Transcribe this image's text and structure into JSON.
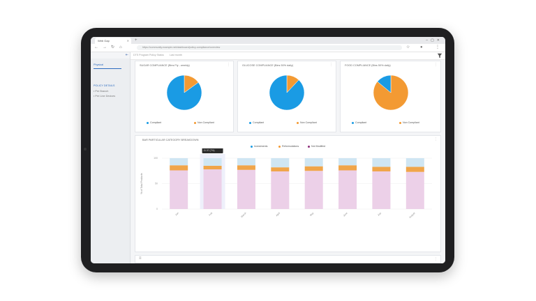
{
  "browser": {
    "tab_title": "Web Gap",
    "url": "https://community.example.net/dashboard/policy-compliance/overview"
  },
  "sidebar": {
    "top_link": "Physical",
    "section_title": "POLICY DETAILS",
    "items": [
      {
        "label": "Per Branch"
      },
      {
        "label": "Per Line Devices"
      }
    ]
  },
  "header": {
    "breadcrumb_1": "DTS Program Policy Status",
    "breadcrumb_2": "Last month"
  },
  "colors": {
    "compliant": "#1a9be4",
    "non_compliant": "#f39a33",
    "remediation": "#f0a54a",
    "not_modified": "#ecd0e8",
    "no_issue": "#cfe6f3"
  },
  "pie_cards": [
    {
      "title": "SUGAR COMPLIANCE (Bins Fly - weekly)",
      "legend": [
        "Compliant",
        "Non Compliant"
      ],
      "chart_data": {
        "type": "pie",
        "labels": [
          "Compliant",
          "Non Compliant"
        ],
        "values": [
          85,
          15
        ]
      }
    },
    {
      "title": "GLUCOSE COMPLIANCE (Bins 50% daily)",
      "legend": [
        "Compliant",
        "Non Compliant"
      ],
      "chart_data": {
        "type": "pie",
        "labels": [
          "Compliant",
          "Non Compliant"
        ],
        "values": [
          88,
          12
        ]
      }
    },
    {
      "title": "FOOD COMPLIANCE (Bins 50% daily)",
      "legend": [
        "Compliant",
        "Non Compliant"
      ],
      "chart_data": {
        "type": "pie",
        "labels": [
          "Compliant",
          "Non Compliant"
        ],
        "values": [
          14,
          86
        ]
      }
    }
  ],
  "bar_card": {
    "title": "BAR PARTICULAR CATEGORY BREAKDOWN",
    "legend": [
      "Investments",
      "Reformulations",
      "Not Modified"
    ],
    "ylabel": "% of Total Products",
    "tooltip_title": "• Reformulations",
    "tooltip_value": "11.37 (7%)",
    "chart_data": {
      "type": "bar",
      "categories": [
        "Jan",
        "Feb",
        "March",
        "April",
        "May",
        "June",
        "July",
        "August"
      ],
      "yticks": [
        "100",
        "50",
        "0"
      ],
      "ylim": [
        0,
        100
      ],
      "series": [
        {
          "name": "Not Modified",
          "values": [
            76,
            78,
            77,
            74,
            75,
            76,
            74,
            73
          ]
        },
        {
          "name": "Reformulations",
          "values": [
            10,
            7,
            9,
            8,
            9,
            10,
            9,
            10
          ]
        },
        {
          "name": "Investments",
          "values": [
            14,
            15,
            14,
            18,
            16,
            14,
            17,
            17
          ]
        }
      ]
    }
  },
  "bottom_card": {
    "icon": "list-icon"
  }
}
